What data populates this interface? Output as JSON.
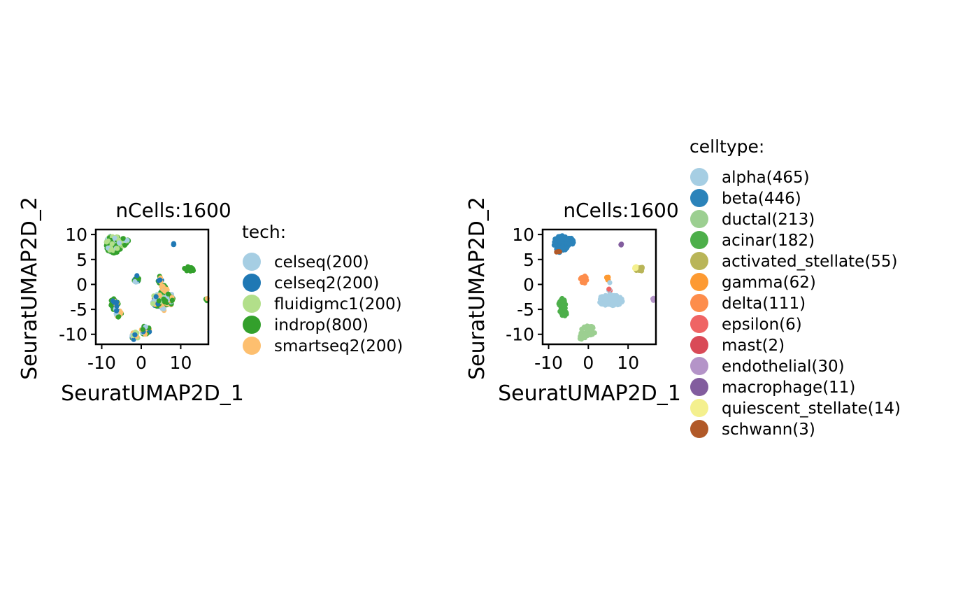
{
  "chart_data": [
    {
      "type": "scatter",
      "title": "nCells:1600",
      "xlabel": "SeuratUMAP2D_1",
      "ylabel": "SeuratUMAP2D_2",
      "xlim": [
        -11.5,
        17
      ],
      "ylim": [
        -12,
        11
      ],
      "xticks": [
        -10,
        0,
        10
      ],
      "xtick_labels": [
        "-10",
        "0",
        "10"
      ],
      "yticks": [
        10,
        5,
        0,
        -5,
        -10
      ],
      "ytick_labels": [
        "10",
        "5",
        "0",
        "-5",
        "-10"
      ],
      "grid": false,
      "legend_title": "tech:",
      "legend_position": "right",
      "legend": [
        {
          "label": "celseq(200)",
          "color": "#a6cee3"
        },
        {
          "label": "celseq2(200)",
          "color": "#1f78b4"
        },
        {
          "label": "fluidigmc1(200)",
          "color": "#b2df8a"
        },
        {
          "label": "indrop(800)",
          "color": "#33a02c"
        },
        {
          "label": "smartseq2(200)",
          "color": "#fdbf6f"
        }
      ],
      "clusters": [
        {
          "cx": -7,
          "cy": 8,
          "rx": 2.0,
          "ry": 1.8,
          "n": 120,
          "colors": [
            3,
            3,
            2,
            3,
            2,
            0
          ]
        },
        {
          "cx": -4.5,
          "cy": 8.6,
          "rx": 1.3,
          "ry": 0.9,
          "n": 40,
          "colors": [
            3,
            3,
            2,
            0
          ]
        },
        {
          "cx": 8.2,
          "cy": 8,
          "rx": 0.2,
          "ry": 0.2,
          "n": 3,
          "colors": [
            1,
            0
          ]
        },
        {
          "cx": 12.3,
          "cy": 3.1,
          "rx": 1.4,
          "ry": 0.5,
          "n": 14,
          "colors": [
            3
          ]
        },
        {
          "cx": -1.2,
          "cy": 1.2,
          "rx": 0.7,
          "ry": 0.8,
          "n": 14,
          "colors": [
            3,
            0,
            1
          ]
        },
        {
          "cx": 4.7,
          "cy": 1.0,
          "rx": 0.5,
          "ry": 0.8,
          "n": 10,
          "colors": [
            3,
            4,
            1
          ]
        },
        {
          "cx": 5.8,
          "cy": -2.5,
          "rx": 1.0,
          "ry": 2.8,
          "n": 45,
          "colors": [
            4,
            4,
            0,
            3,
            4
          ]
        },
        {
          "cx": 4.2,
          "cy": -3.2,
          "rx": 1.6,
          "ry": 1.2,
          "n": 50,
          "colors": [
            3,
            4,
            0,
            1,
            2
          ]
        },
        {
          "cx": 7.0,
          "cy": -3.0,
          "rx": 1.4,
          "ry": 1.2,
          "n": 40,
          "colors": [
            3,
            4,
            0
          ]
        },
        {
          "cx": 16.5,
          "cy": -3.0,
          "rx": 0.3,
          "ry": 0.3,
          "n": 4,
          "colors": [
            3,
            4
          ]
        },
        {
          "cx": -6.8,
          "cy": -4.0,
          "rx": 1.0,
          "ry": 1.2,
          "n": 35,
          "colors": [
            3,
            3,
            1,
            0,
            4
          ]
        },
        {
          "cx": -5.8,
          "cy": -5.8,
          "rx": 0.8,
          "ry": 0.8,
          "n": 20,
          "colors": [
            1,
            3,
            0,
            4
          ]
        },
        {
          "cx": 1.0,
          "cy": -9.2,
          "rx": 1.2,
          "ry": 0.9,
          "n": 25,
          "colors": [
            3,
            1,
            0,
            4
          ]
        },
        {
          "cx": -1.6,
          "cy": -10.3,
          "rx": 0.9,
          "ry": 0.8,
          "n": 20,
          "colors": [
            3,
            1,
            0,
            4,
            2
          ]
        }
      ]
    },
    {
      "type": "scatter",
      "title": "nCells:1600",
      "xlabel": "SeuratUMAP2D_1",
      "ylabel": "SeuratUMAP2D_2",
      "xlim": [
        -11.5,
        17
      ],
      "ylim": [
        -12,
        11
      ],
      "xticks": [
        -10,
        0,
        10
      ],
      "xtick_labels": [
        "-10",
        "0",
        "10"
      ],
      "yticks": [
        10,
        5,
        0,
        -5,
        -10
      ],
      "ytick_labels": [
        "10",
        "5",
        "0",
        "-5",
        "-10"
      ],
      "grid": false,
      "legend_title": "celltype:",
      "legend_position": "right",
      "legend": [
        {
          "label": "alpha(465)",
          "color": "#a6cee3"
        },
        {
          "label": "beta(446)",
          "color": "#2b83ba"
        },
        {
          "label": "ductal(213)",
          "color": "#9ccf91"
        },
        {
          "label": "acinar(182)",
          "color": "#4daf4a"
        },
        {
          "label": "activated_stellate(55)",
          "color": "#b9b558"
        },
        {
          "label": "gamma(62)",
          "color": "#fd9a32"
        },
        {
          "label": "delta(111)",
          "color": "#fd8d4c"
        },
        {
          "label": "epsilon(6)",
          "color": "#ef6464"
        },
        {
          "label": "mast(2)",
          "color": "#d94a57"
        },
        {
          "label": "endothelial(30)",
          "color": "#b494c8"
        },
        {
          "label": "macrophage(11)",
          "color": "#825d9e"
        },
        {
          "label": "quiescent_stellate(14)",
          "color": "#f4f08e"
        },
        {
          "label": "schwann(3)",
          "color": "#b15928"
        }
      ],
      "clusters": [
        {
          "cx": -6.8,
          "cy": 8.2,
          "rx": 1.9,
          "ry": 1.6,
          "n": 130,
          "colors": [
            1
          ]
        },
        {
          "cx": -4.8,
          "cy": 8.6,
          "rx": 1.1,
          "ry": 0.8,
          "n": 40,
          "colors": [
            1
          ]
        },
        {
          "cx": -7.5,
          "cy": 6.6,
          "rx": 0.6,
          "ry": 0.4,
          "n": 6,
          "colors": [
            12,
            1
          ]
        },
        {
          "cx": 8.2,
          "cy": 8.0,
          "rx": 0.2,
          "ry": 0.2,
          "n": 3,
          "colors": [
            10
          ]
        },
        {
          "cx": 13.0,
          "cy": 3.0,
          "rx": 1.1,
          "ry": 0.5,
          "n": 14,
          "colors": [
            4
          ]
        },
        {
          "cx": 11.9,
          "cy": 3.3,
          "rx": 0.3,
          "ry": 0.3,
          "n": 4,
          "colors": [
            11
          ]
        },
        {
          "cx": -1.2,
          "cy": 1.0,
          "rx": 0.8,
          "ry": 0.8,
          "n": 18,
          "colors": [
            6
          ]
        },
        {
          "cx": 4.8,
          "cy": 1.1,
          "rx": 0.3,
          "ry": 0.6,
          "n": 8,
          "colors": [
            5
          ]
        },
        {
          "cx": 5.3,
          "cy": -0.5,
          "rx": 0.3,
          "ry": 1.0,
          "n": 6,
          "colors": [
            0,
            7
          ]
        },
        {
          "cx": 5.6,
          "cy": -3.2,
          "rx": 3.0,
          "ry": 1.2,
          "n": 90,
          "colors": [
            0
          ]
        },
        {
          "cx": 16.5,
          "cy": -3.0,
          "rx": 0.3,
          "ry": 0.3,
          "n": 4,
          "colors": [
            9
          ]
        },
        {
          "cx": -6.6,
          "cy": -4.3,
          "rx": 0.9,
          "ry": 1.6,
          "n": 35,
          "colors": [
            3
          ]
        },
        {
          "cx": -6.0,
          "cy": -6.0,
          "rx": 0.6,
          "ry": 0.6,
          "n": 12,
          "colors": [
            3
          ]
        },
        {
          "cx": 0.0,
          "cy": -9.3,
          "rx": 1.8,
          "ry": 1.0,
          "n": 45,
          "colors": [
            2
          ]
        },
        {
          "cx": -1.5,
          "cy": -10.4,
          "rx": 0.9,
          "ry": 0.7,
          "n": 20,
          "colors": [
            2
          ]
        }
      ]
    }
  ]
}
